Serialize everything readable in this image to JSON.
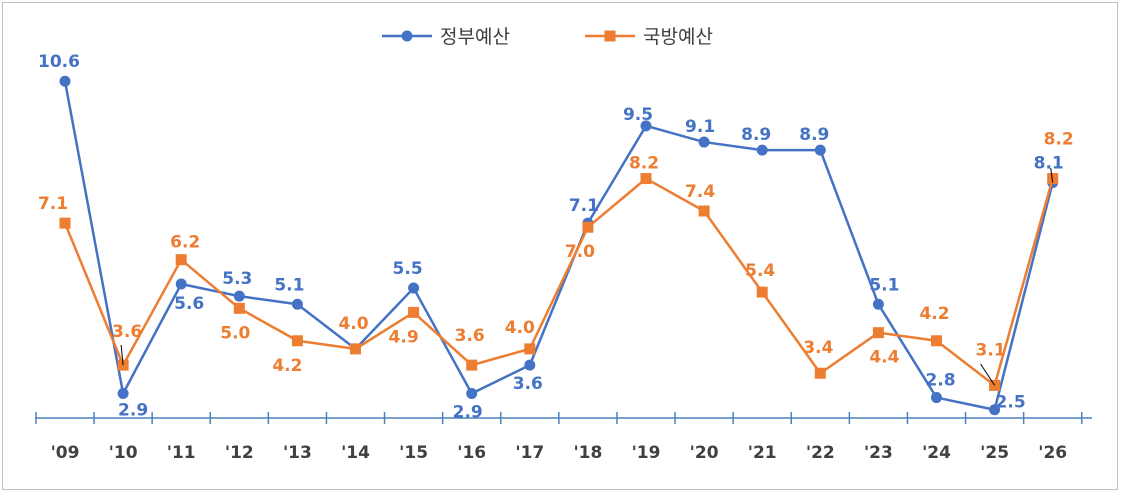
{
  "chart_data": {
    "type": "line",
    "title": "",
    "xlabel": "",
    "ylabel": "",
    "categories": [
      "'09",
      "'10",
      "'11",
      "'12",
      "'13",
      "'14",
      "'15",
      "'16",
      "'17",
      "'18",
      "'19",
      "'20",
      "'21",
      "'22",
      "'23",
      "'24",
      "'25",
      "'26"
    ],
    "series": [
      {
        "name": "정부예산",
        "color": "#4472c4",
        "marker": "circle",
        "values": [
          10.6,
          2.9,
          5.6,
          5.3,
          5.1,
          4.0,
          5.5,
          2.9,
          3.6,
          7.1,
          9.5,
          9.1,
          8.9,
          8.9,
          5.1,
          2.8,
          2.5,
          8.1
        ],
        "labels": [
          "10.6",
          "2.9",
          "5.6",
          "5.3",
          "5.1",
          "",
          "5.5",
          "2.9",
          "3.6",
          "7.1",
          "9.5",
          "9.1",
          "8.9",
          "8.9",
          "5.1",
          "2.8",
          "2.5",
          "8.1"
        ]
      },
      {
        "name": "국방예산",
        "color": "#ed7d31",
        "marker": "square",
        "values": [
          7.1,
          3.6,
          6.2,
          5.0,
          4.2,
          4.0,
          4.9,
          3.6,
          4.0,
          7.0,
          8.2,
          7.4,
          5.4,
          3.4,
          4.4,
          4.2,
          3.1,
          8.2
        ],
        "labels": [
          "7.1",
          "3.6",
          "6.2",
          "5.0",
          "4.2",
          "4.0",
          "4.9",
          "3.6",
          "4.0",
          "7.0",
          "8.2",
          "7.4",
          "5.4",
          "3.4",
          "4.4",
          "4.2",
          "3.1",
          "8.2"
        ]
      }
    ],
    "ylim": [
      2.0,
      11.0
    ],
    "grid": false,
    "legend_position": "top-center"
  }
}
